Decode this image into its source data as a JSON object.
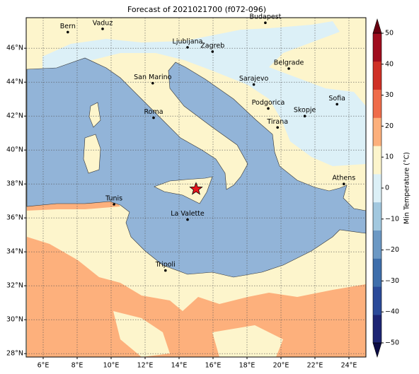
{
  "title": "Forecast of 2021021700 (f072-096)",
  "map": {
    "xlim": [
      5,
      25
    ],
    "ylim": [
      27.8,
      47.8
    ],
    "xticks": [
      {
        "value": 6,
        "label": "6°E"
      },
      {
        "value": 8,
        "label": "8°E"
      },
      {
        "value": 10,
        "label": "10°E"
      },
      {
        "value": 12,
        "label": "12°E"
      },
      {
        "value": 14,
        "label": "14°E"
      },
      {
        "value": 16,
        "label": "16°E"
      },
      {
        "value": 18,
        "label": "18°E"
      },
      {
        "value": 20,
        "label": "20°E"
      },
      {
        "value": 22,
        "label": "22°E"
      },
      {
        "value": 24,
        "label": "24°E"
      }
    ],
    "yticks": [
      {
        "value": 28,
        "label": "28°N"
      },
      {
        "value": 30,
        "label": "30°N"
      },
      {
        "value": 32,
        "label": "32°N"
      },
      {
        "value": 34,
        "label": "34°N"
      },
      {
        "value": 36,
        "label": "36°N"
      },
      {
        "value": 38,
        "label": "38°N"
      },
      {
        "value": 40,
        "label": "40°N"
      },
      {
        "value": 42,
        "label": "42°N"
      },
      {
        "value": 44,
        "label": "44°N"
      },
      {
        "value": 46,
        "label": "46°N"
      }
    ],
    "cities": [
      {
        "name": "Bern",
        "lon": 7.45,
        "lat": 46.95
      },
      {
        "name": "Vaduz",
        "lon": 9.5,
        "lat": 47.14
      },
      {
        "name": "Budapest",
        "lon": 19.08,
        "lat": 47.5
      },
      {
        "name": "Ljubljana",
        "lon": 14.5,
        "lat": 46.05
      },
      {
        "name": "Zagreb",
        "lon": 15.97,
        "lat": 45.8
      },
      {
        "name": "Belgrade",
        "lon": 20.46,
        "lat": 44.8
      },
      {
        "name": "San Marino",
        "lon": 12.45,
        "lat": 43.94
      },
      {
        "name": "Sarajevo",
        "lon": 18.4,
        "lat": 43.86
      },
      {
        "name": "Sofia",
        "lon": 23.3,
        "lat": 42.7
      },
      {
        "name": "Podgorica",
        "lon": 19.25,
        "lat": 42.45
      },
      {
        "name": "Skopje",
        "lon": 21.4,
        "lat": 42.0
      },
      {
        "name": "Roma",
        "lon": 12.5,
        "lat": 41.9
      },
      {
        "name": "Tirana",
        "lon": 19.8,
        "lat": 41.33
      },
      {
        "name": "Athens",
        "lon": 23.7,
        "lat": 38.0
      },
      {
        "name": "Tunis",
        "lon": 10.17,
        "lat": 36.8
      },
      {
        "name": "La Valette",
        "lon": 14.5,
        "lat": 35.9
      },
      {
        "name": "Tripoli",
        "lon": 13.2,
        "lat": 32.9
      }
    ],
    "marker": {
      "lon": 15.0,
      "lat": 37.7,
      "color": "#e8141c"
    }
  },
  "colorbar": {
    "label": "Min Temperature (°C)",
    "lim": [
      -50,
      50
    ],
    "ticks": [
      {
        "value": -50,
        "label": "−50"
      },
      {
        "value": -40,
        "label": "−40"
      },
      {
        "value": -30,
        "label": "−30"
      },
      {
        "value": -20,
        "label": "−20"
      },
      {
        "value": -10,
        "label": "−10"
      },
      0,
      10,
      20,
      30,
      40,
      50
    ],
    "colors": [
      "#1d2574",
      "#2b4a99",
      "#3e6eab",
      "#6b98c4",
      "#a2c8df",
      "#dcf0f7",
      "#fdf5cc",
      "#fdb07c",
      "#ef6c4a",
      "#cf3026",
      "#a00d1e"
    ],
    "extend_colors": [
      "#0c0c45",
      "#6a0010"
    ]
  }
}
